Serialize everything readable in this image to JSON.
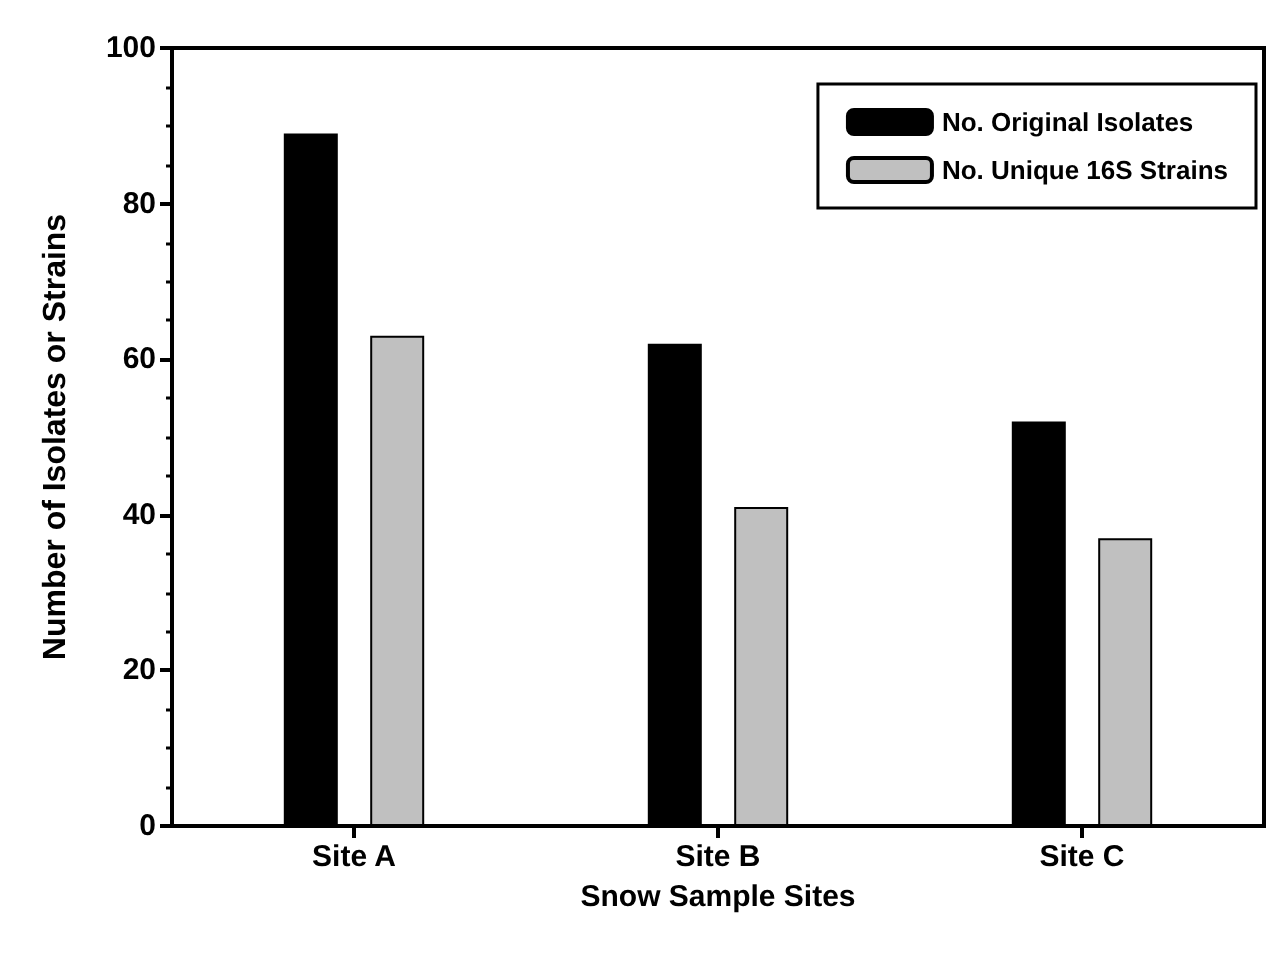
{
  "chart_data": {
    "type": "bar",
    "xlabel": "Snow Sample Sites",
    "ylabel": "Number of Isolates or Strains",
    "categories": [
      "Site A",
      "Site B",
      "Site C"
    ],
    "series": [
      {
        "name": "No. Original Isolates",
        "color": "#000000",
        "values": [
          89,
          62,
          52
        ]
      },
      {
        "name": "No. Unique 16S Strains",
        "color": "#c0c0c0",
        "values": [
          63,
          41,
          37
        ]
      }
    ],
    "ylim": [
      0,
      100
    ],
    "yticks": [
      0,
      20,
      40,
      60,
      80,
      100
    ],
    "grid": false,
    "legend": "top right"
  }
}
